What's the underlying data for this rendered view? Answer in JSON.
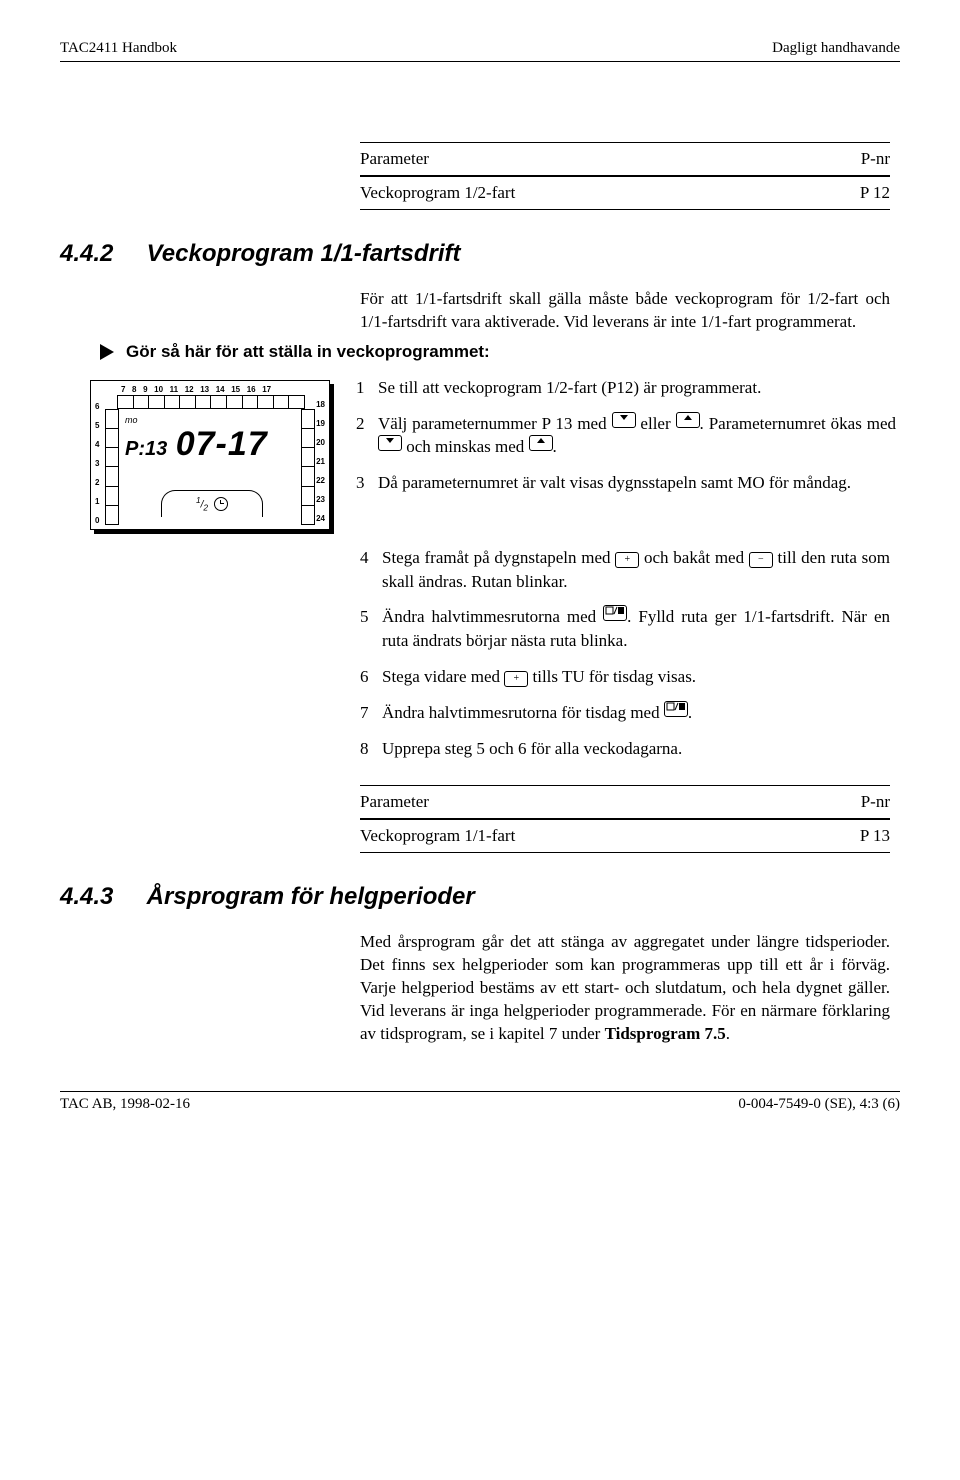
{
  "header": {
    "left": "TAC2411 Handbok",
    "right": "Dagligt handhavande"
  },
  "param_table_1": {
    "h_left": "Parameter",
    "h_right": "P-nr",
    "row_left": "Veckoprogram 1/2-fart",
    "row_right": "P 12"
  },
  "sec_442": {
    "num": "4.4.2",
    "title": "Veckoprogram 1/1-fartsdrift",
    "para": "För att 1/1-fartsdrift skall gälla måste både veckoprogram för 1/2-fart och 1/1-fartsdrift vara aktiverade. Vid leverans är inte 1/1-fart programmerat.",
    "instr": "Gör så här för att ställa in veckoprogrammet:"
  },
  "lcd": {
    "top": [
      "7",
      "8",
      "9",
      "10",
      "11",
      "12",
      "13",
      "14",
      "15",
      "16",
      "17"
    ],
    "left": [
      "0",
      "1",
      "2",
      "3",
      "4",
      "5",
      "6"
    ],
    "right": [
      "18",
      "19",
      "20",
      "21",
      "22",
      "23",
      "24"
    ],
    "mo": "mo",
    "p": "P:13",
    "time": "07-17",
    "chip_half": "1/2"
  },
  "steps": {
    "s1": "Se till att veckoprogram 1/2-fart (P12) är programmerat.",
    "s2a": "Välj parameternummer P 13 med ",
    "s2b": " eller ",
    "s2c": ". Parameternumret ökas med ",
    "s2d": " och minskas med ",
    "s2e": ".",
    "s3": "Då parameternumret är valt visas dygnsstapeln samt MO för måndag.",
    "s4a": "Stega framåt på dygnstapeln med ",
    "s4b": " och bakåt med ",
    "s4c": " till den ruta som skall ändras. Rutan blinkar.",
    "s5a": "Ändra halvtimmesrutorna med ",
    "s5b": ". Fylld ruta ger 1/1-fartsdrift. När en ruta ändrats börjar nästa ruta blinka.",
    "s6a": "Stega vidare med ",
    "s6b": " tills TU för tisdag visas.",
    "s7a": "Ändra halvtimmesrutorna för tisdag med ",
    "s7b": ".",
    "s8": "Upprepa steg 5 och 6 för alla veckodagarna."
  },
  "param_table_2": {
    "h_left": "Parameter",
    "h_right": "P-nr",
    "row_left": "Veckoprogram 1/1-fart",
    "row_right": "P 13"
  },
  "sec_443": {
    "num": "4.4.3",
    "title": "Årsprogram för helgperioder",
    "para": "Med årsprogram går det att stänga av aggregatet under längre tidsperioder. Det finns sex helgperioder som kan programmeras upp till ett år i förväg. Varje helgperiod bestäms av ett start- och slutdatum, och hela dygnet gäller. Vid leverans är inga helgperioder programmerade. För en närmare förklaring av tidsprogram, se i kapitel 7 under ",
    "para_bold": "Tidsprogram 7.5",
    "para_end": "."
  },
  "footer": {
    "left": "TAC AB, 1998-02-16",
    "right": "0-004-7549-0 (SE), 4:3 (6)"
  },
  "keys": {
    "down_svg": "<svg width='12' height='8'><polygon points='2,2 10,2 6,7' fill='#000'/></svg>",
    "up_svg": "<svg width='12' height='8'><polygon points='2,7 10,7 6,2' fill='#000'/></svg>",
    "plus": "+",
    "minus": "−",
    "toggle_svg": "<svg width='20' height='10'><rect x='1' y='1' width='7' height='7' fill='none' stroke='#000'/><line x1='9' y1='8' x2='12' y2='1' stroke='#000'/><rect x='13' y='1' width='6' height='7' fill='#000'/></svg>"
  }
}
